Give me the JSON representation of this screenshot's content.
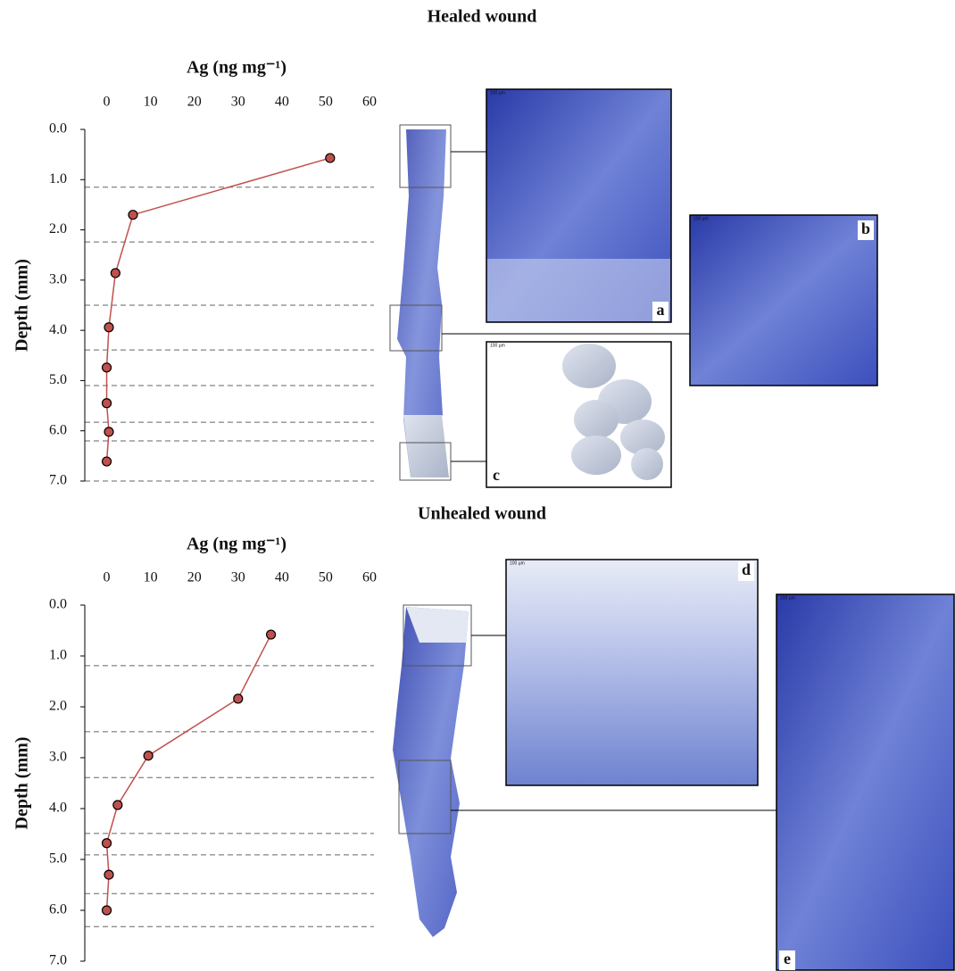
{
  "chart_data": [
    {
      "type": "line",
      "title": "Healed wound",
      "xlabel": "Ag (ng mg⁻¹)",
      "ylabel": "Depth (mm)",
      "xlim": [
        -5,
        60
      ],
      "xticks": [
        0,
        10,
        20,
        30,
        40,
        50,
        60
      ],
      "ylim": [
        0,
        7
      ],
      "yticks": [
        {
          "value": 0,
          "label": "0.0"
        },
        {
          "value": 1,
          "label": "1.0"
        },
        {
          "value": 2,
          "label": "2.0"
        },
        {
          "value": 3,
          "label": "3.0"
        },
        {
          "value": 4,
          "label": "4.0"
        },
        {
          "value": 5,
          "label": "5.0"
        },
        {
          "value": 6,
          "label": "6.0"
        },
        {
          "value": 7,
          "label": "7.0"
        }
      ],
      "y_inverted": true,
      "series": [
        {
          "color": "#c0504d",
          "x": [
            51,
            6,
            2,
            0.5,
            0,
            0,
            0.5,
            0
          ],
          "values": [
            0.57,
            1.7,
            2.86,
            3.94,
            4.74,
            5.45,
            6.02,
            6.61
          ]
        }
      ],
      "section_boundaries": [
        1.15,
        2.24,
        3.5,
        4.39,
        5.1,
        5.83,
        6.2,
        7.0
      ]
    },
    {
      "type": "line",
      "title": "Unhealed wound",
      "xlabel": "Ag (ng mg⁻¹)",
      "ylabel": "Depth (mm)",
      "xlim": [
        -5,
        60
      ],
      "xticks": [
        0,
        10,
        20,
        30,
        40,
        50,
        60
      ],
      "ylim": [
        0,
        7
      ],
      "yticks": [
        {
          "value": 0,
          "label": "0.0"
        },
        {
          "value": 1,
          "label": "1.0"
        },
        {
          "value": 2,
          "label": "2.0"
        },
        {
          "value": 3,
          "label": "3.0"
        },
        {
          "value": 4,
          "label": "4.0"
        },
        {
          "value": 5,
          "label": "5.0"
        },
        {
          "value": 6,
          "label": "6.0"
        },
        {
          "value": 7,
          "label": "7.0"
        }
      ],
      "y_inverted": true,
      "series": [
        {
          "color": "#c0504d",
          "x": [
            37.5,
            30,
            9.5,
            2.5,
            0,
            0.5,
            0
          ],
          "values": [
            0.58,
            1.84,
            2.96,
            3.93,
            4.68,
            5.3,
            6.0
          ]
        }
      ],
      "section_boundaries": [
        1.19,
        2.49,
        3.39,
        4.49,
        4.91,
        5.67,
        6.32
      ]
    }
  ],
  "panels": [
    {
      "label": "a",
      "scale": "100 µm"
    },
    {
      "label": "b",
      "scale": "100 µm"
    },
    {
      "label": "c",
      "scale": "100 µm"
    },
    {
      "label": "d",
      "scale": "100 µm"
    },
    {
      "label": "e",
      "scale": "100 µm"
    }
  ]
}
